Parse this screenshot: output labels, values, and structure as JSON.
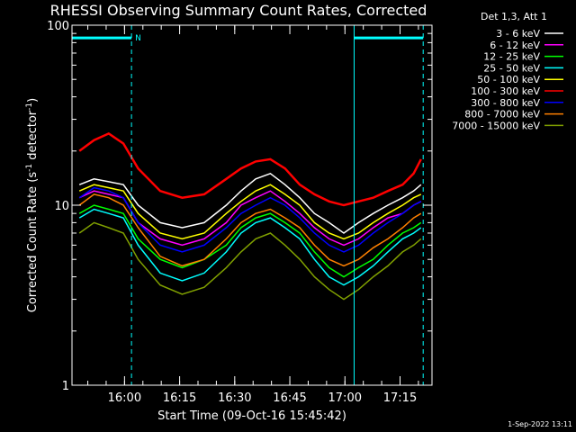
{
  "chart_data": {
    "type": "line",
    "title": "RHESSI Observing Summary Count Rates, Corrected",
    "xlabel": "Start Time (09-Oct-16 15:45:42)",
    "ylabel_main": "Corrected Count Rate (s",
    "ylabel_sup1": "-1",
    "ylabel_mid": " detector",
    "ylabel_sup2": "-1",
    "ylabel_end": ")",
    "yscale": "log",
    "ylim": [
      1,
      100
    ],
    "xlim_minutes": [
      0,
      98
    ],
    "yticks": [
      {
        "value": 1,
        "label": "1"
      },
      {
        "value": 10,
        "label": "10"
      },
      {
        "value": 100,
        "label": "100"
      }
    ],
    "xticks": [
      {
        "t": 14.3,
        "label": "16:00"
      },
      {
        "t": 29.3,
        "label": "16:15"
      },
      {
        "t": 44.3,
        "label": "16:30"
      },
      {
        "t": 59.3,
        "label": "16:45"
      },
      {
        "t": 74.3,
        "label": "17:00"
      },
      {
        "t": 89.3,
        "label": "17:15"
      }
    ],
    "legend_title": "Det 1,3, Att 1",
    "legend_position": "top-right",
    "series": [
      {
        "name": "3 - 6 keV",
        "color": "#ffffff",
        "t": [
          2,
          6,
          10,
          14,
          18,
          24,
          30,
          36,
          42,
          46,
          50,
          54,
          58,
          62,
          66,
          70,
          74,
          78,
          82,
          86,
          90,
          93,
          95
        ],
        "values": [
          13,
          14,
          13.5,
          13,
          10,
          8,
          7.5,
          8,
          10,
          12,
          14,
          15,
          13,
          11,
          9,
          8,
          7,
          8,
          9,
          10,
          11,
          12,
          13
        ]
      },
      {
        "name": "6 - 12 keV",
        "color": "#ff00ff",
        "t": [
          2,
          6,
          10,
          14,
          18,
          24,
          30,
          36,
          42,
          46,
          50,
          54,
          58,
          62,
          66,
          70,
          74,
          78,
          82,
          86,
          90,
          93,
          95
        ],
        "values": [
          11,
          12,
          11.5,
          11,
          8,
          6.5,
          6,
          6.5,
          8,
          10,
          11,
          12,
          10.5,
          9,
          7.5,
          6.5,
          6,
          6.5,
          7.5,
          8.5,
          9,
          10,
          10.5
        ]
      },
      {
        "name": "12 - 25 keV",
        "color": "#00ff00",
        "t": [
          2,
          6,
          10,
          14,
          18,
          24,
          30,
          36,
          42,
          46,
          50,
          54,
          58,
          62,
          66,
          70,
          74,
          78,
          82,
          86,
          90,
          93,
          95
        ],
        "values": [
          9,
          10,
          9.5,
          9,
          6.5,
          5,
          4.5,
          5,
          6,
          7.5,
          8.5,
          9,
          8,
          7,
          5.5,
          4.5,
          4,
          4.5,
          5,
          6,
          7,
          7.5,
          8
        ]
      },
      {
        "name": "25 - 50 keV",
        "color": "#00ffff",
        "t": [
          2,
          6,
          10,
          14,
          18,
          24,
          30,
          36,
          42,
          46,
          50,
          54,
          58,
          62,
          66,
          70,
          74,
          78,
          82,
          86,
          90,
          93,
          95
        ],
        "values": [
          8.5,
          9.5,
          9,
          8.5,
          6,
          4.2,
          3.8,
          4.2,
          5.5,
          7,
          8,
          8.5,
          7.5,
          6.5,
          5,
          4,
          3.6,
          4,
          4.6,
          5.5,
          6.5,
          7,
          7.5
        ]
      },
      {
        "name": "50 - 100 keV",
        "color": "#ffff00",
        "t": [
          2,
          6,
          10,
          14,
          18,
          24,
          30,
          36,
          42,
          46,
          50,
          54,
          58,
          62,
          66,
          70,
          74,
          78,
          82,
          86,
          90,
          93,
          95
        ],
        "values": [
          12,
          13,
          12.5,
          12,
          9,
          7,
          6.5,
          7,
          9,
          10.5,
          12,
          13,
          11.5,
          10,
          8,
          7,
          6.5,
          7,
          8,
          9,
          10,
          11,
          11.5
        ]
      },
      {
        "name": "100 - 300 keV",
        "color": "#ff0000",
        "t": [
          2,
          6,
          10,
          14,
          18,
          24,
          30,
          36,
          42,
          46,
          50,
          54,
          58,
          62,
          66,
          70,
          74,
          78,
          82,
          86,
          90,
          93,
          95
        ],
        "values": [
          20,
          23,
          25,
          22,
          16,
          12,
          11,
          11.5,
          14,
          16,
          17.5,
          18,
          16,
          13,
          11.5,
          10.5,
          10,
          10.5,
          11,
          12,
          13,
          15,
          18
        ]
      },
      {
        "name": "300 - 800 keV",
        "color": "#0000ff",
        "t": [
          2,
          6,
          10,
          14,
          18,
          24,
          30,
          36,
          42,
          46,
          50,
          54,
          58,
          62,
          66,
          70,
          74,
          78,
          82,
          86,
          90,
          93,
          95
        ],
        "values": [
          11,
          12.5,
          12,
          11,
          8,
          6,
          5.5,
          6,
          7.5,
          9,
          10,
          11,
          10,
          8.5,
          7,
          6,
          5.5,
          6,
          7,
          8,
          9,
          10,
          10.5
        ]
      },
      {
        "name": "800 - 7000 keV",
        "color": "#ff8000",
        "t": [
          2,
          6,
          10,
          14,
          18,
          24,
          30,
          36,
          42,
          46,
          50,
          54,
          58,
          62,
          66,
          70,
          74,
          78,
          82,
          86,
          90,
          93,
          95
        ],
        "values": [
          10,
          11.5,
          11,
          10,
          7.5,
          5.2,
          4.6,
          5,
          6.5,
          8,
          9,
          9.5,
          8.5,
          7.5,
          6,
          5,
          4.6,
          5,
          5.8,
          6.5,
          7.5,
          8.5,
          9
        ]
      },
      {
        "name": "7000 - 15000 keV",
        "color": "#80a000",
        "t": [
          2,
          6,
          10,
          14,
          18,
          24,
          30,
          36,
          42,
          46,
          50,
          54,
          58,
          62,
          66,
          70,
          74,
          78,
          82,
          86,
          90,
          93,
          95
        ],
        "values": [
          7,
          8,
          7.5,
          7,
          5,
          3.6,
          3.2,
          3.5,
          4.5,
          5.5,
          6.5,
          7,
          6,
          5,
          4,
          3.4,
          3,
          3.4,
          4,
          4.6,
          5.5,
          6,
          6.5
        ]
      }
    ],
    "annotations": {
      "flag_label": "N",
      "flag_color": "#00ffff",
      "flag_level": 85,
      "night_intervals": [
        [
          0,
          16.2
        ],
        [
          76.8,
          95.6
        ]
      ],
      "solid_lines_t": [
        0,
        76.8
      ],
      "dashed_lines_t": [
        16.2,
        95.6
      ]
    }
  },
  "timestamp": "1-Sep-2022 13:11"
}
